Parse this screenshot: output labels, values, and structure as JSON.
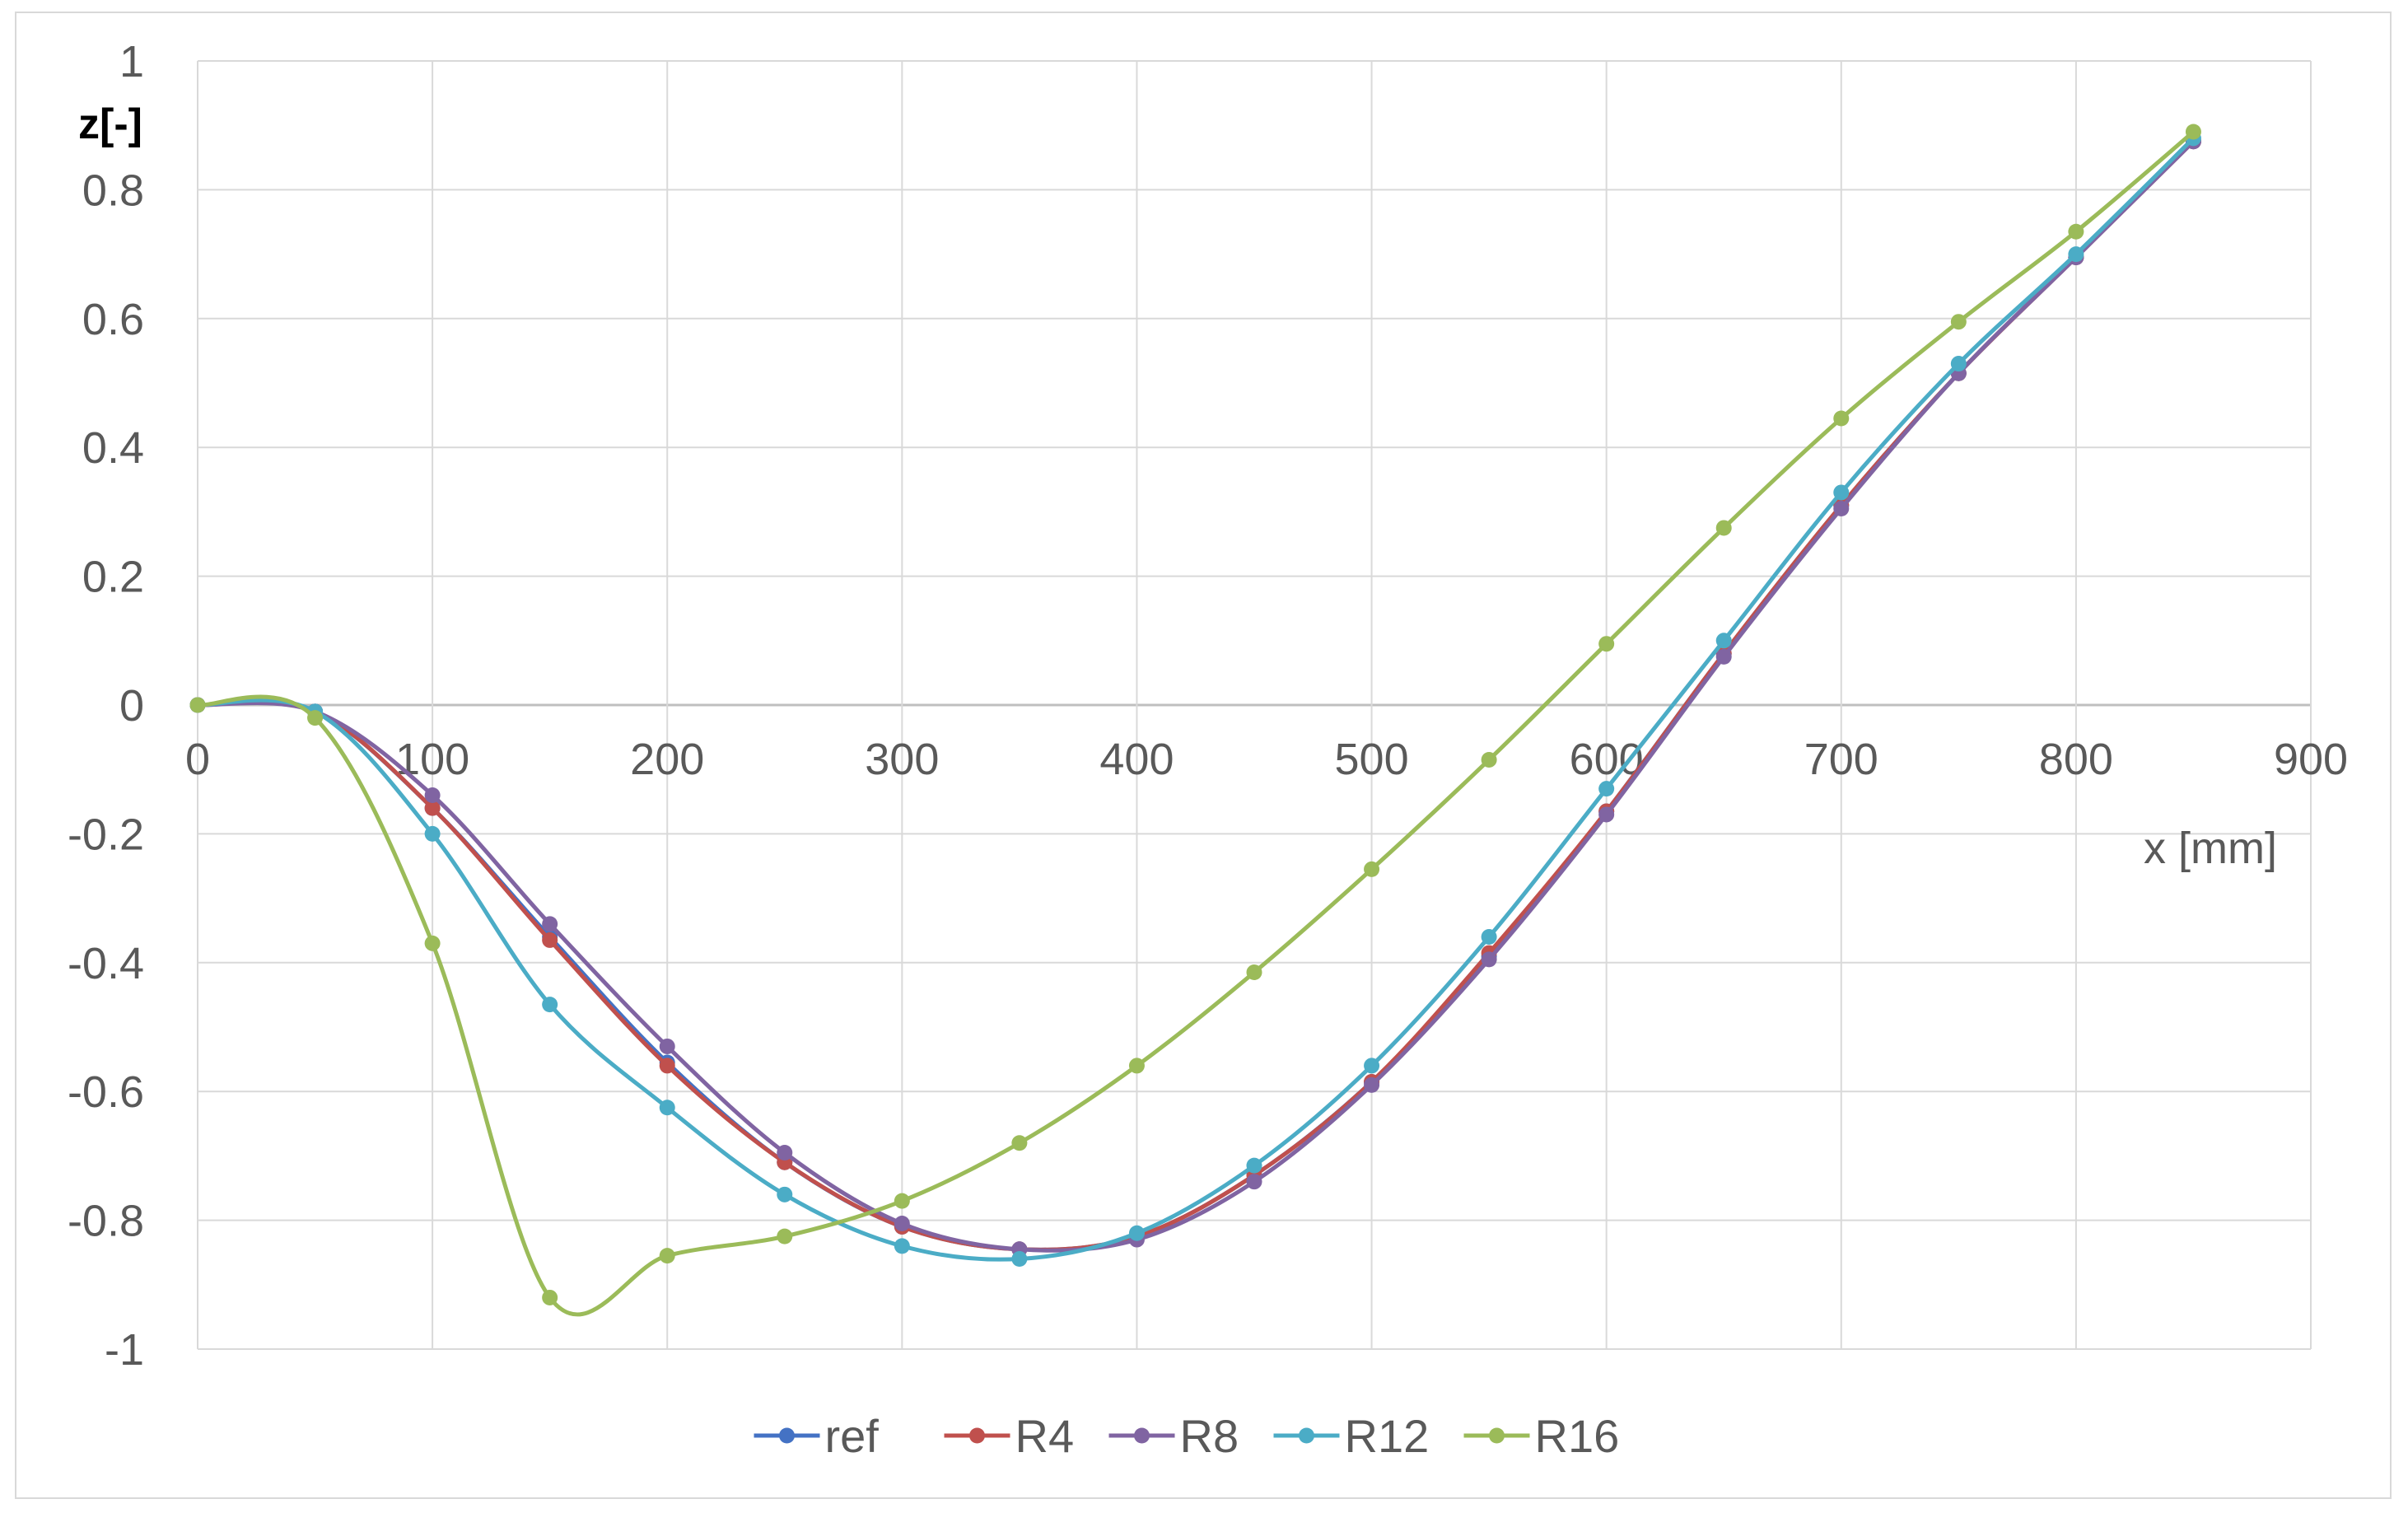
{
  "chart_data": {
    "type": "line",
    "xlabel": "x [mm]",
    "ylabel": "z[-]",
    "xlim": [
      0,
      900
    ],
    "ylim": [
      -1,
      1
    ],
    "xticks": [
      0,
      100,
      200,
      300,
      400,
      500,
      600,
      700,
      800,
      900
    ],
    "yticks": [
      -1,
      -0.8,
      -0.6,
      -0.4,
      -0.2,
      0,
      0.2,
      0.4,
      0.6,
      0.8,
      1
    ],
    "grid": true,
    "legend_position": "bottom",
    "smooth": true,
    "x": [
      0,
      50,
      100,
      150,
      200,
      250,
      300,
      350,
      400,
      450,
      500,
      550,
      600,
      650,
      700,
      750,
      800,
      850
    ],
    "series": [
      {
        "name": "ref",
        "color": "#4472C4",
        "values": [
          0,
          -0.01,
          -0.16,
          -0.36,
          -0.555,
          -0.71,
          -0.81,
          -0.845,
          -0.825,
          -0.73,
          -0.585,
          -0.39,
          -0.165,
          0.08,
          0.31,
          0.515,
          0.695,
          0.875
        ]
      },
      {
        "name": "R4",
        "color": "#C0504D",
        "values": [
          0,
          -0.01,
          -0.16,
          -0.365,
          -0.56,
          -0.71,
          -0.81,
          -0.845,
          -0.825,
          -0.73,
          -0.585,
          -0.385,
          -0.165,
          0.08,
          0.31,
          0.515,
          0.695,
          0.875
        ]
      },
      {
        "name": "R8",
        "color": "#8064A2",
        "values": [
          0,
          -0.01,
          -0.14,
          -0.34,
          -0.53,
          -0.695,
          -0.805,
          -0.845,
          -0.83,
          -0.74,
          -0.59,
          -0.395,
          -0.17,
          0.075,
          0.305,
          0.515,
          0.695,
          0.875
        ]
      },
      {
        "name": "R12",
        "color": "#4BACC6",
        "values": [
          0,
          -0.01,
          -0.2,
          -0.465,
          -0.625,
          -0.76,
          -0.84,
          -0.86,
          -0.82,
          -0.715,
          -0.56,
          -0.36,
          -0.13,
          0.1,
          0.33,
          0.53,
          0.7,
          0.88
        ]
      },
      {
        "name": "R16",
        "color": "#9BBB59",
        "values": [
          0,
          -0.02,
          -0.37,
          -0.92,
          -0.855,
          -0.825,
          -0.77,
          -0.68,
          -0.56,
          -0.415,
          -0.255,
          -0.085,
          0.095,
          0.275,
          0.445,
          0.595,
          0.735,
          0.89
        ]
      }
    ]
  }
}
